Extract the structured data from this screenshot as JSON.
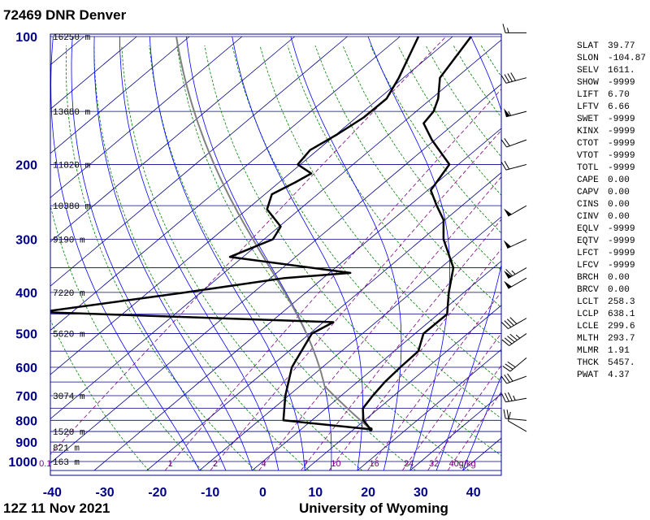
{
  "header": {
    "title": "72469 DNR Denver"
  },
  "footer": {
    "left": "12Z 11 Nov 2021",
    "right": "University of Wyoming"
  },
  "colors": {
    "isobar": "#00008b",
    "isotherm": "#00008b",
    "dry_adiabat": "#008000",
    "moist_adiabat": "#0000ff",
    "mixing_ratio": "#800080",
    "temperature": "#000000",
    "dewpoint": "#000000",
    "parcel": "#808080",
    "axis_label": "#00008b"
  },
  "chart_data": {
    "type": "skew-t log-p",
    "station": "72469 DNR Denver",
    "time": "12Z 11 Nov 2021",
    "source": "University of Wyoming",
    "pressure_axis": {
      "labels": [
        "100",
        "200",
        "300",
        "400",
        "500",
        "600",
        "700",
        "800",
        "900",
        "1000"
      ],
      "range_hpa": [
        1050,
        100
      ],
      "log_scale": true
    },
    "temperature_axis": {
      "labels": [
        "-40",
        "-30",
        "-20",
        "-10",
        "0",
        "10",
        "20",
        "30",
        "40"
      ],
      "range_c": [
        -40,
        45
      ]
    },
    "height_labels": [
      {
        "p": 100,
        "label": "16250 m"
      },
      {
        "p": 150,
        "label": "13680 m"
      },
      {
        "p": 200,
        "label": "11820 m"
      },
      {
        "p": 250,
        "label": "10380 m"
      },
      {
        "p": 300,
        "label": "9190 m"
      },
      {
        "p": 400,
        "label": "7220 m"
      },
      {
        "p": 500,
        "label": "5620 m"
      },
      {
        "p": 700,
        "label": "3074 m"
      },
      {
        "p": 850,
        "label": "1520 m"
      },
      {
        "p": 925,
        "label": "821 m"
      },
      {
        "p": 1000,
        "label": "163 m"
      }
    ],
    "mixing_ratio_labels": [
      "0.1",
      "1",
      "2",
      "4",
      "7",
      "10",
      "16",
      "24",
      "32",
      "40g/kg"
    ],
    "mixing_ratio_values_gkg": [
      0.1,
      1,
      2,
      4,
      7,
      10,
      16,
      24,
      32,
      40
    ],
    "temperature_profile": [
      {
        "p": 840,
        "t": 13.2
      },
      {
        "p": 800,
        "t": 9.8
      },
      {
        "p": 750,
        "t": 7.0
      },
      {
        "p": 700,
        "t": 6.0
      },
      {
        "p": 650,
        "t": 5.2
      },
      {
        "p": 600,
        "t": 4.8
      },
      {
        "p": 550,
        "t": 4.6
      },
      {
        "p": 500,
        "t": 1.6
      },
      {
        "p": 450,
        "t": 1.7
      },
      {
        "p": 400,
        "t": -2.9
      },
      {
        "p": 350,
        "t": -7.6
      },
      {
        "p": 300,
        "t": -15.9
      },
      {
        "p": 270,
        "t": -20.3
      },
      {
        "p": 250,
        "t": -24.8
      },
      {
        "p": 230,
        "t": -29.4
      },
      {
        "p": 200,
        "t": -31.7
      },
      {
        "p": 175,
        "t": -40.6
      },
      {
        "p": 160,
        "t": -45.9
      },
      {
        "p": 150,
        "t": -46.7
      },
      {
        "p": 140,
        "t": -48.7
      },
      {
        "p": 125,
        "t": -53.1
      },
      {
        "p": 100,
        "t": -56.5
      }
    ],
    "dewpoint_profile": [
      {
        "p": 840,
        "t": 13.2
      },
      {
        "p": 800,
        "t": -5.4
      },
      {
        "p": 700,
        "t": -10.6
      },
      {
        "p": 600,
        "t": -15.8
      },
      {
        "p": 500,
        "t": -19.6
      },
      {
        "p": 470,
        "t": -18.1
      },
      {
        "p": 445,
        "t": -76.0
      },
      {
        "p": 400,
        "t": -52.9
      },
      {
        "p": 370,
        "t": -37.3
      },
      {
        "p": 360,
        "t": -26.0
      },
      {
        "p": 330,
        "t": -52.5
      },
      {
        "p": 300,
        "t": -48.3
      },
      {
        "p": 280,
        "t": -49.7
      },
      {
        "p": 255,
        "t": -56.2
      },
      {
        "p": 235,
        "t": -58.7
      },
      {
        "p": 220,
        "t": -56.9
      },
      {
        "p": 210,
        "t": -55.9
      },
      {
        "p": 200,
        "t": -60.5
      },
      {
        "p": 185,
        "t": -61.4
      },
      {
        "p": 170,
        "t": -59.8
      },
      {
        "p": 155,
        "t": -58.6
      },
      {
        "p": 140,
        "t": -58.5
      },
      {
        "p": 125,
        "t": -60.9
      },
      {
        "p": 100,
        "t": -66.5
      }
    ],
    "wind_barbs": [
      {
        "p": 98,
        "dir": 270,
        "spd": 15
      },
      {
        "p": 125,
        "dir": 255,
        "spd": 40
      },
      {
        "p": 150,
        "dir": 255,
        "spd": 55
      },
      {
        "p": 175,
        "dir": 250,
        "spd": 20
      },
      {
        "p": 200,
        "dir": 255,
        "spd": 20
      },
      {
        "p": 250,
        "dir": 240,
        "spd": 50
      },
      {
        "p": 300,
        "dir": 245,
        "spd": 50
      },
      {
        "p": 350,
        "dir": 240,
        "spd": 65
      },
      {
        "p": 370,
        "dir": 240,
        "spd": 50
      },
      {
        "p": 460,
        "dir": 240,
        "spd": 40
      },
      {
        "p": 500,
        "dir": 235,
        "spd": 45
      },
      {
        "p": 570,
        "dir": 230,
        "spd": 30
      },
      {
        "p": 630,
        "dir": 250,
        "spd": 30
      },
      {
        "p": 710,
        "dir": 260,
        "spd": 35
      },
      {
        "p": 800,
        "dir": 275,
        "spd": 20
      },
      {
        "p": 850,
        "dir": 300,
        "spd": 10
      }
    ]
  },
  "indices": [
    {
      "key": "SLAT",
      "value": "39.77"
    },
    {
      "key": "SLON",
      "value": "-104.87"
    },
    {
      "key": "SELV",
      "value": "1611."
    },
    {
      "key": "SHOW",
      "value": "-9999"
    },
    {
      "key": "LIFT",
      "value": "6.70"
    },
    {
      "key": "LFTV",
      "value": "6.66"
    },
    {
      "key": "SWET",
      "value": "-9999"
    },
    {
      "key": "KINX",
      "value": "-9999"
    },
    {
      "key": "CTOT",
      "value": "-9999"
    },
    {
      "key": "VTOT",
      "value": "-9999"
    },
    {
      "key": "TOTL",
      "value": "-9999"
    },
    {
      "key": "CAPE",
      "value": "0.00"
    },
    {
      "key": "CAPV",
      "value": "0.00"
    },
    {
      "key": "CINS",
      "value": "0.00"
    },
    {
      "key": "CINV",
      "value": "0.00"
    },
    {
      "key": "EQLV",
      "value": "-9999"
    },
    {
      "key": "EQTV",
      "value": "-9999"
    },
    {
      "key": "LFCT",
      "value": "-9999"
    },
    {
      "key": "LFCV",
      "value": "-9999"
    },
    {
      "key": "BRCH",
      "value": "0.00"
    },
    {
      "key": "BRCV",
      "value": "0.00"
    },
    {
      "key": "LCLT",
      "value": "258.3"
    },
    {
      "key": "LCLP",
      "value": "638.1"
    },
    {
      "key": "LCLE",
      "value": "299.6"
    },
    {
      "key": "MLTH",
      "value": "293.7"
    },
    {
      "key": "MLMR",
      "value": "1.91"
    },
    {
      "key": "THCK",
      "value": "5457."
    },
    {
      "key": "PWAT",
      "value": "4.37"
    }
  ]
}
